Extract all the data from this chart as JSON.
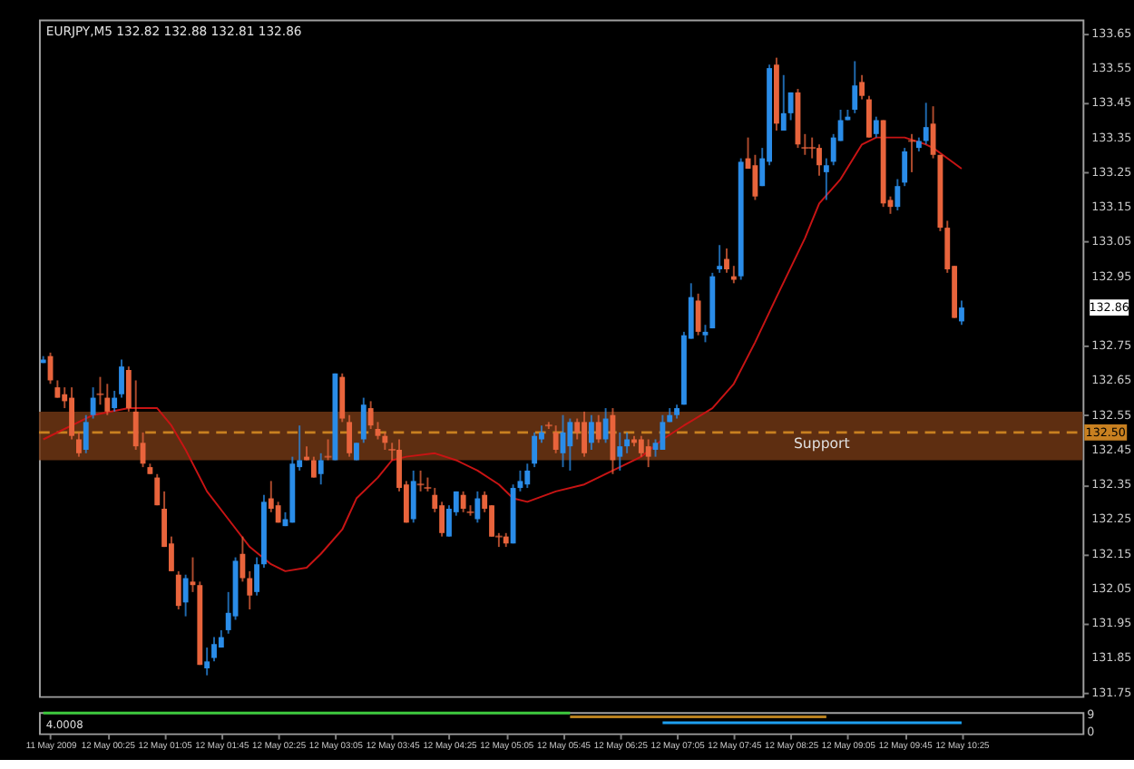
{
  "chart_data": [
    {
      "type": "candlestick",
      "title": "EURJPY,M5  132.82 132.88 132.81 132.86",
      "x": [
        "2009-05-11T23:40",
        "2009-05-11T23:45",
        "2009-05-11T23:50",
        "2009-05-11T23:55",
        "2009-05-12T00:00",
        "2009-05-12T00:05",
        "2009-05-12T00:10",
        "2009-05-12T00:15",
        "2009-05-12T00:20",
        "2009-05-12T00:25",
        "2009-05-12T00:30",
        "2009-05-12T00:35",
        "2009-05-12T00:40",
        "2009-05-12T00:45",
        "2009-05-12T00:50",
        "2009-05-12T00:55",
        "2009-05-12T01:00",
        "2009-05-12T01:05",
        "2009-05-12T01:10",
        "2009-05-12T01:15",
        "2009-05-12T01:20",
        "2009-05-12T01:25",
        "2009-05-12T01:30",
        "2009-05-12T01:35",
        "2009-05-12T01:40",
        "2009-05-12T01:45",
        "2009-05-12T01:50",
        "2009-05-12T01:55",
        "2009-05-12T02:00",
        "2009-05-12T02:05",
        "2009-05-12T02:10",
        "2009-05-12T02:15",
        "2009-05-12T02:20",
        "2009-05-12T02:25",
        "2009-05-12T02:30",
        "2009-05-12T02:35",
        "2009-05-12T02:40",
        "2009-05-12T02:45",
        "2009-05-12T02:50",
        "2009-05-12T02:55",
        "2009-05-12T03:00",
        "2009-05-12T03:05",
        "2009-05-12T03:10",
        "2009-05-12T03:15",
        "2009-05-12T03:20",
        "2009-05-12T03:25",
        "2009-05-12T03:30",
        "2009-05-12T03:35",
        "2009-05-12T03:40",
        "2009-05-12T03:45",
        "2009-05-12T03:50",
        "2009-05-12T03:55",
        "2009-05-12T04:00",
        "2009-05-12T04:05",
        "2009-05-12T04:10",
        "2009-05-12T04:15",
        "2009-05-12T04:20",
        "2009-05-12T04:25",
        "2009-05-12T04:30",
        "2009-05-12T04:35",
        "2009-05-12T04:40",
        "2009-05-12T04:45",
        "2009-05-12T04:50",
        "2009-05-12T04:55",
        "2009-05-12T05:00",
        "2009-05-12T05:05",
        "2009-05-12T05:10",
        "2009-05-12T05:15",
        "2009-05-12T05:20",
        "2009-05-12T05:25",
        "2009-05-12T05:30",
        "2009-05-12T05:35",
        "2009-05-12T05:40",
        "2009-05-12T05:45",
        "2009-05-12T05:50",
        "2009-05-12T05:55",
        "2009-05-12T06:00",
        "2009-05-12T06:05",
        "2009-05-12T06:10",
        "2009-05-12T06:15",
        "2009-05-12T06:20",
        "2009-05-12T06:25",
        "2009-05-12T06:30",
        "2009-05-12T06:35",
        "2009-05-12T06:40",
        "2009-05-12T06:45",
        "2009-05-12T06:50",
        "2009-05-12T06:55",
        "2009-05-12T07:00",
        "2009-05-12T07:05",
        "2009-05-12T07:10",
        "2009-05-12T07:15",
        "2009-05-12T07:20",
        "2009-05-12T07:25",
        "2009-05-12T07:30",
        "2009-05-12T07:35",
        "2009-05-12T07:40",
        "2009-05-12T07:45",
        "2009-05-12T07:50",
        "2009-05-12T07:55",
        "2009-05-12T08:00",
        "2009-05-12T08:05",
        "2009-05-12T08:10",
        "2009-05-12T08:15",
        "2009-05-12T08:20",
        "2009-05-12T08:25",
        "2009-05-12T08:30",
        "2009-05-12T08:35",
        "2009-05-12T08:40",
        "2009-05-12T08:45",
        "2009-05-12T08:50",
        "2009-05-12T08:55",
        "2009-05-12T09:00",
        "2009-05-12T09:05",
        "2009-05-12T09:10",
        "2009-05-12T09:15",
        "2009-05-12T09:20",
        "2009-05-12T09:25",
        "2009-05-12T09:30",
        "2009-05-12T09:35",
        "2009-05-12T09:40",
        "2009-05-12T09:45",
        "2009-05-12T09:50",
        "2009-05-12T09:55",
        "2009-05-12T10:00",
        "2009-05-12T10:05",
        "2009-05-12T10:10",
        "2009-05-12T10:15",
        "2009-05-12T10:20",
        "2009-05-12T10:25"
      ],
      "ohlc": [
        [
          132.7,
          132.72,
          132.7,
          132.71
        ],
        [
          132.72,
          132.73,
          132.64,
          132.65
        ],
        [
          132.63,
          132.65,
          132.6,
          132.6
        ],
        [
          132.61,
          132.63,
          132.57,
          132.59
        ],
        [
          132.6,
          132.63,
          132.48,
          132.49
        ],
        [
          132.48,
          132.5,
          132.43,
          132.44
        ],
        [
          132.45,
          132.55,
          132.44,
          132.53
        ],
        [
          132.55,
          132.63,
          132.54,
          132.6
        ],
        [
          132.61,
          132.66,
          132.58,
          132.61
        ],
        [
          132.6,
          132.64,
          132.55,
          132.56
        ],
        [
          132.57,
          132.62,
          132.56,
          132.6
        ],
        [
          132.61,
          132.71,
          132.6,
          132.69
        ],
        [
          132.68,
          132.69,
          132.56,
          132.57
        ],
        [
          132.56,
          132.65,
          132.45,
          132.46
        ],
        [
          132.47,
          132.5,
          132.4,
          132.41
        ],
        [
          132.4,
          132.41,
          132.38,
          132.38
        ],
        [
          132.37,
          132.38,
          132.29,
          132.29
        ],
        [
          132.28,
          132.33,
          132.17,
          132.17
        ],
        [
          132.18,
          132.2,
          132.1,
          132.1
        ],
        [
          132.09,
          132.1,
          131.99,
          132.0
        ],
        [
          132.01,
          132.09,
          131.97,
          132.08
        ],
        [
          132.07,
          132.14,
          132.04,
          132.06
        ],
        [
          132.06,
          132.07,
          131.83,
          131.83
        ],
        [
          131.82,
          131.88,
          131.8,
          131.84
        ],
        [
          131.85,
          131.91,
          131.84,
          131.89
        ],
        [
          131.88,
          131.93,
          131.88,
          131.91
        ],
        [
          131.93,
          132.04,
          131.92,
          131.98
        ],
        [
          131.97,
          132.14,
          131.96,
          132.13
        ],
        [
          132.15,
          132.2,
          132.07,
          132.08
        ],
        [
          132.08,
          132.1,
          131.99,
          132.03
        ],
        [
          132.04,
          132.14,
          132.03,
          132.12
        ],
        [
          132.12,
          132.32,
          132.11,
          132.3
        ],
        [
          132.31,
          132.36,
          132.27,
          132.28
        ],
        [
          132.29,
          132.3,
          132.24,
          132.24
        ],
        [
          132.23,
          132.27,
          132.23,
          132.25
        ],
        [
          132.24,
          132.43,
          132.24,
          132.41
        ],
        [
          132.4,
          132.52,
          132.39,
          132.42
        ],
        [
          132.43,
          132.46,
          132.42,
          132.42
        ],
        [
          132.42,
          132.43,
          132.37,
          132.37
        ],
        [
          132.38,
          132.44,
          132.35,
          132.42
        ],
        [
          132.43,
          132.48,
          132.42,
          132.43
        ],
        [
          132.42,
          132.67,
          132.42,
          132.67
        ],
        [
          132.66,
          132.67,
          132.53,
          132.54
        ],
        [
          132.53,
          132.55,
          132.43,
          132.44
        ],
        [
          132.42,
          132.47,
          132.42,
          132.47
        ],
        [
          132.48,
          132.6,
          132.47,
          132.58
        ],
        [
          132.57,
          132.59,
          132.51,
          132.52
        ],
        [
          132.51,
          132.53,
          132.48,
          132.49
        ],
        [
          132.49,
          132.5,
          132.45,
          132.47
        ],
        [
          132.45,
          132.47,
          132.42,
          132.45
        ],
        [
          132.45,
          132.48,
          132.33,
          132.34
        ],
        [
          132.35,
          132.36,
          132.24,
          132.24
        ],
        [
          132.25,
          132.39,
          132.24,
          132.36
        ],
        [
          132.35,
          132.39,
          132.33,
          132.35
        ],
        [
          132.34,
          132.37,
          132.33,
          132.34
        ],
        [
          132.32,
          132.34,
          132.27,
          132.28
        ],
        [
          132.29,
          132.3,
          132.2,
          132.21
        ],
        [
          132.2,
          132.29,
          132.2,
          132.28
        ],
        [
          132.27,
          132.33,
          132.26,
          132.33
        ],
        [
          132.32,
          132.33,
          132.27,
          132.28
        ],
        [
          132.27,
          132.29,
          132.26,
          132.27
        ],
        [
          132.25,
          132.33,
          132.24,
          132.31
        ],
        [
          132.32,
          132.33,
          132.27,
          132.28
        ],
        [
          132.29,
          132.29,
          132.2,
          132.2
        ],
        [
          132.2,
          132.21,
          132.17,
          132.2
        ],
        [
          132.2,
          132.21,
          132.17,
          132.18
        ],
        [
          132.18,
          132.35,
          132.18,
          132.34
        ],
        [
          132.34,
          132.39,
          132.33,
          132.36
        ],
        [
          132.35,
          132.41,
          132.34,
          132.39
        ],
        [
          132.41,
          132.5,
          132.4,
          132.49
        ],
        [
          132.48,
          132.52,
          132.47,
          132.5
        ],
        [
          132.52,
          132.53,
          132.51,
          132.52
        ],
        [
          132.5,
          132.52,
          132.44,
          132.45
        ],
        [
          132.44,
          132.55,
          132.4,
          132.5
        ],
        [
          132.46,
          132.54,
          132.39,
          132.53
        ],
        [
          132.53,
          132.54,
          132.48,
          132.5
        ],
        [
          132.53,
          132.56,
          132.43,
          132.44
        ],
        [
          132.47,
          132.55,
          132.45,
          132.53
        ],
        [
          132.53,
          132.55,
          132.47,
          132.48
        ],
        [
          132.48,
          132.57,
          132.47,
          132.54
        ],
        [
          132.55,
          132.57,
          132.38,
          132.42
        ],
        [
          132.43,
          132.5,
          132.39,
          132.46
        ],
        [
          132.46,
          132.5,
          132.44,
          132.48
        ],
        [
          132.48,
          132.49,
          132.46,
          132.47
        ],
        [
          132.48,
          132.49,
          132.43,
          132.44
        ],
        [
          132.46,
          132.48,
          132.4,
          132.43
        ],
        [
          132.45,
          132.48,
          132.43,
          132.47
        ],
        [
          132.45,
          132.55,
          132.45,
          132.53
        ],
        [
          132.53,
          132.57,
          132.53,
          132.55
        ],
        [
          132.55,
          132.58,
          132.54,
          132.57
        ],
        [
          132.58,
          132.79,
          132.58,
          132.78
        ],
        [
          132.77,
          132.93,
          132.77,
          132.89
        ],
        [
          132.88,
          132.9,
          132.78,
          132.79
        ],
        [
          132.78,
          132.81,
          132.76,
          132.79
        ],
        [
          132.8,
          132.96,
          132.8,
          132.95
        ],
        [
          132.97,
          133.04,
          132.96,
          132.98
        ],
        [
          133.0,
          133.03,
          132.96,
          132.97
        ],
        [
          132.95,
          132.98,
          132.93,
          132.94
        ],
        [
          132.95,
          133.29,
          132.94,
          133.28
        ],
        [
          133.29,
          133.35,
          133.26,
          133.26
        ],
        [
          133.27,
          133.3,
          133.17,
          133.18
        ],
        [
          133.21,
          133.32,
          133.21,
          133.29
        ],
        [
          133.28,
          133.56,
          133.27,
          133.55
        ],
        [
          133.56,
          133.58,
          133.37,
          133.39
        ],
        [
          133.37,
          133.53,
          133.37,
          133.42
        ],
        [
          133.42,
          133.48,
          133.4,
          133.48
        ],
        [
          133.48,
          133.49,
          133.32,
          133.33
        ],
        [
          133.32,
          133.36,
          133.3,
          133.32
        ],
        [
          133.32,
          133.35,
          133.29,
          133.32
        ],
        [
          133.32,
          133.33,
          133.24,
          133.27
        ],
        [
          133.25,
          133.29,
          133.17,
          133.27
        ],
        [
          133.28,
          133.36,
          133.27,
          133.35
        ],
        [
          133.34,
          133.43,
          133.34,
          133.4
        ],
        [
          133.4,
          133.43,
          133.4,
          133.41
        ],
        [
          133.43,
          133.57,
          133.42,
          133.5
        ],
        [
          133.51,
          133.53,
          133.46,
          133.47
        ],
        [
          133.46,
          133.47,
          133.35,
          133.35
        ],
        [
          133.36,
          133.41,
          133.35,
          133.4
        ],
        [
          133.4,
          133.4,
          133.15,
          133.16
        ],
        [
          133.17,
          133.18,
          133.13,
          133.15
        ],
        [
          133.15,
          133.23,
          133.14,
          133.21
        ],
        [
          133.22,
          133.32,
          133.21,
          133.31
        ],
        [
          133.34,
          133.36,
          133.25,
          133.34
        ],
        [
          133.32,
          133.35,
          133.31,
          133.34
        ],
        [
          133.34,
          133.45,
          133.33,
          133.38
        ],
        [
          133.39,
          133.44,
          133.29,
          133.3
        ],
        [
          133.3,
          133.3,
          133.08,
          133.09
        ],
        [
          133.09,
          133.11,
          132.96,
          132.97
        ],
        [
          132.98,
          132.98,
          132.83,
          132.83
        ],
        [
          132.82,
          132.88,
          132.81,
          132.86
        ]
      ],
      "colors": [
        "#2a8ce8",
        "#e8643c",
        "#e8643c",
        "#e8643c",
        "#e8643c",
        "#e8643c",
        "#2a8ce8",
        "#2a8ce8",
        "#e8643c",
        "#e8643c",
        "#2a8ce8",
        "#2a8ce8",
        "#e8643c",
        "#e8643c",
        "#e8643c",
        "#e8643c",
        "#e8643c",
        "#e8643c",
        "#e8643c",
        "#e8643c",
        "#2a8ce8",
        "#e8643c",
        "#e8643c",
        "#2a8ce8",
        "#2a8ce8",
        "#2a8ce8",
        "#2a8ce8",
        "#2a8ce8",
        "#e8643c",
        "#e8643c",
        "#2a8ce8",
        "#2a8ce8",
        "#e8643c",
        "#e8643c",
        "#2a8ce8",
        "#2a8ce8",
        "#2a8ce8",
        "#e8643c",
        "#e8643c",
        "#2a8ce8",
        "#e8643c",
        "#2a8ce8",
        "#e8643c",
        "#e8643c",
        "#2a8ce8",
        "#2a8ce8",
        "#e8643c",
        "#e8643c",
        "#e8643c",
        "#e8643c",
        "#e8643c",
        "#e8643c",
        "#2a8ce8",
        "#e8643c",
        "#e8643c",
        "#e8643c",
        "#e8643c",
        "#2a8ce8",
        "#2a8ce8",
        "#e8643c",
        "#e8643c",
        "#2a8ce8",
        "#e8643c",
        "#e8643c",
        "#e8643c",
        "#e8643c",
        "#2a8ce8",
        "#2a8ce8",
        "#2a8ce8",
        "#2a8ce8",
        "#2a8ce8",
        "#e8643c",
        "#e8643c",
        "#2a8ce8",
        "#2a8ce8",
        "#e8643c",
        "#e8643c",
        "#2a8ce8",
        "#e8643c",
        "#2a8ce8",
        "#e8643c",
        "#2a8ce8",
        "#2a8ce8",
        "#e8643c",
        "#e8643c",
        "#e8643c",
        "#2a8ce8",
        "#2a8ce8",
        "#2a8ce8",
        "#2a8ce8",
        "#2a8ce8",
        "#2a8ce8",
        "#e8643c",
        "#2a8ce8",
        "#2a8ce8",
        "#2a8ce8",
        "#e8643c",
        "#e8643c",
        "#2a8ce8",
        "#e8643c",
        "#e8643c",
        "#2a8ce8",
        "#2a8ce8",
        "#e8643c",
        "#2a8ce8",
        "#2a8ce8",
        "#e8643c",
        "#e8643c",
        "#e8643c",
        "#e8643c",
        "#2a8ce8",
        "#2a8ce8",
        "#2a8ce8",
        "#2a8ce8",
        "#2a8ce8",
        "#e8643c",
        "#e8643c",
        "#2a8ce8",
        "#e8643c",
        "#e8643c",
        "#2a8ce8",
        "#2a8ce8",
        "#e8643c",
        "#2a8ce8",
        "#2a8ce8",
        "#e8643c",
        "#e8643c",
        "#e8643c",
        "#e8643c",
        "#2a8ce8"
      ],
      "series": [
        {
          "type": "line",
          "color": "#c81414",
          "x": [
            "2009-05-11T23:40",
            "2009-05-12T00:15",
            "2009-05-12T00:40",
            "2009-05-12T01:00",
            "2009-05-12T01:10",
            "2009-05-12T01:20",
            "2009-05-12T01:35",
            "2009-05-12T01:50",
            "2009-05-12T02:05",
            "2009-05-12T02:20",
            "2009-05-12T02:30",
            "2009-05-12T02:45",
            "2009-05-12T02:55",
            "2009-05-12T03:10",
            "2009-05-12T03:20",
            "2009-05-12T03:35",
            "2009-05-12T03:45",
            "2009-05-12T03:55",
            "2009-05-12T04:15",
            "2009-05-12T04:30",
            "2009-05-12T04:45",
            "2009-05-12T05:00",
            "2009-05-12T05:10",
            "2009-05-12T05:20",
            "2009-05-12T05:40",
            "2009-05-12T06:00",
            "2009-05-12T06:20",
            "2009-05-12T06:40",
            "2009-05-12T06:55",
            "2009-05-12T07:10",
            "2009-05-12T07:30",
            "2009-05-12T07:45",
            "2009-05-12T08:00",
            "2009-05-12T08:15",
            "2009-05-12T08:35",
            "2009-05-12T08:45",
            "2009-05-12T09:00",
            "2009-05-12T09:15",
            "2009-05-12T09:25",
            "2009-05-12T09:35",
            "2009-05-12T09:45",
            "2009-05-12T10:00",
            "2009-05-12T10:05",
            "2009-05-12T10:15",
            "2009-05-12T10:25"
          ],
          "values": [
            132.48,
            132.55,
            132.57,
            132.57,
            132.52,
            132.45,
            132.33,
            132.25,
            132.17,
            132.12,
            132.1,
            132.11,
            132.15,
            132.22,
            132.31,
            132.37,
            132.42,
            132.43,
            132.44,
            132.42,
            132.39,
            132.35,
            132.31,
            132.3,
            132.33,
            132.35,
            132.39,
            132.43,
            132.48,
            132.52,
            132.57,
            132.64,
            132.76,
            132.89,
            133.06,
            133.16,
            133.23,
            133.33,
            133.35,
            133.35,
            133.35,
            133.33,
            133.32,
            133.29,
            133.26
          ]
        }
      ],
      "xlim": [
        "2009-05-11T23:37",
        "2009-05-12T11:50"
      ],
      "ylim": [
        131.74,
        133.69
      ],
      "yticks": [
        131.75,
        131.85,
        131.95,
        132.05,
        132.15,
        132.25,
        132.35,
        132.45,
        132.55,
        132.65,
        132.75,
        132.95,
        133.05,
        133.15,
        133.25,
        133.35,
        133.45,
        133.55,
        133.65
      ],
      "tick_labels": "y",
      "bands": [
        {
          "axis": "y",
          "from": 132.42,
          "to": 132.56,
          "label": "Support",
          "color": "#6e3614"
        }
      ],
      "ref_lines": [
        {
          "axis": "y",
          "value": 132.5,
          "label": "132.50",
          "color": "#c88020",
          "line_style": "dashed"
        }
      ],
      "annotations": [
        "132.86"
      ]
    },
    {
      "type": "line",
      "series": [
        {
          "color": "#3cc83c",
          "x": [
            "2009-05-11T23:40",
            "2009-05-12T05:50"
          ],
          "values": [
            9.5,
            9.5
          ]
        },
        {
          "color": "#b8801e",
          "x": [
            "2009-05-12T05:50",
            "2009-05-12T08:50"
          ],
          "values": [
            7.5,
            7.5
          ]
        },
        {
          "color": "#1ea0f0",
          "x": [
            "2009-05-12T06:55",
            "2009-05-12T10:25"
          ],
          "values": [
            4.5,
            4.5
          ]
        }
      ],
      "xlim": [
        "2009-05-11T23:37",
        "2009-05-12T11:50"
      ],
      "xticks": [
        {
          "value": "2009-05-11T23:45",
          "label": "11 May 2009"
        },
        {
          "value": "2009-05-12T00:25",
          "label": "12 May 00:25"
        },
        {
          "value": "2009-05-12T01:05",
          "label": "12 May 01:05"
        },
        {
          "value": "2009-05-12T01:45",
          "label": "12 May 01:45"
        },
        {
          "value": "2009-05-12T02:25",
          "label": "12 May 02:25"
        },
        {
          "value": "2009-05-12T03:05",
          "label": "12 May 03:05"
        },
        {
          "value": "2009-05-12T03:45",
          "label": "12 May 03:45"
        },
        {
          "value": "2009-05-12T04:25",
          "label": "12 May 04:25"
        },
        {
          "value": "2009-05-12T05:05",
          "label": "12 May 05:05"
        },
        {
          "value": "2009-05-12T05:45",
          "label": "12 May 05:45"
        },
        {
          "value": "2009-05-12T06:25",
          "label": "12 May 06:25"
        },
        {
          "value": "2009-05-12T07:05",
          "label": "12 May 07:05"
        },
        {
          "value": "2009-05-12T07:45",
          "label": "12 May 07:45"
        },
        {
          "value": "2009-05-12T08:25",
          "label": "12 May 08:25"
        },
        {
          "value": "2009-05-12T09:05",
          "label": "12 May 09:05"
        },
        {
          "value": "2009-05-12T09:45",
          "label": "12 May 09:45"
        },
        {
          "value": "2009-05-12T10:25",
          "label": "12 May 10:25"
        }
      ],
      "ylim": [
        -1,
        10
      ],
      "yticks": [
        0,
        9
      ],
      "annotations": [
        "4.0008"
      ]
    }
  ]
}
